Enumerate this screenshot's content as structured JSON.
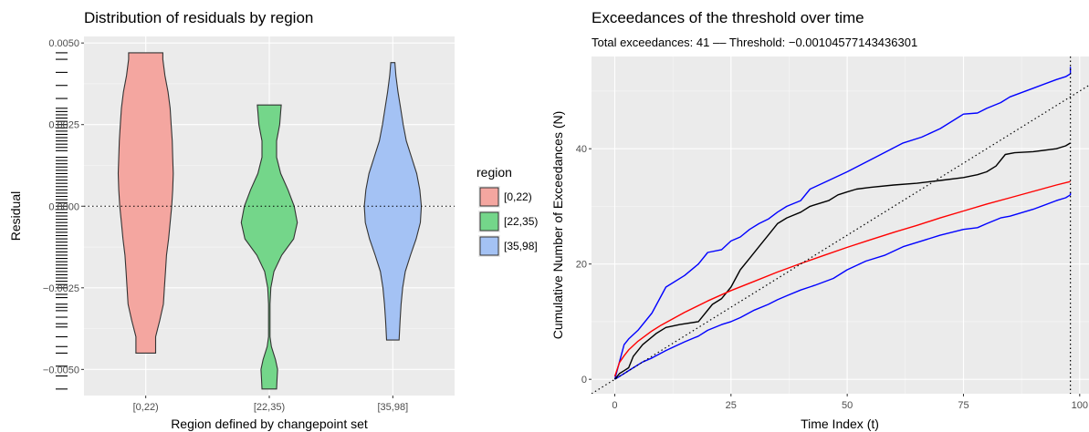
{
  "chart_data": [
    {
      "type": "violin",
      "title": "Distribution of residuals by region",
      "xlabel": "Region defined by changepoint set",
      "ylabel": "Residual",
      "categories": [
        "[0,22)",
        "[22,35)",
        "[35,98]"
      ],
      "ylim": [
        -0.0058,
        0.0052
      ],
      "yticks": [
        -0.005,
        -0.0025,
        0.0,
        0.0025,
        0.005
      ],
      "ytick_labels": [
        "−0.0050",
        "−0.0025",
        "0.0000",
        "0.0025",
        "0.0050"
      ],
      "reference_line": 0.0,
      "rug": true,
      "grid": true,
      "colors": {
        "[0,22)": "#F4A6A0",
        "[22,35)": "#74D68A",
        "[35,98]": "#A4C2F4"
      },
      "violins": [
        {
          "category": "[0,22)",
          "ymin": -0.0045,
          "ymax": 0.0047,
          "profile": [
            [
              -0.0045,
              0.19
            ],
            [
              -0.004,
              0.19
            ],
            [
              -0.0035,
              0.27
            ],
            [
              -0.003,
              0.34
            ],
            [
              -0.0025,
              0.36
            ],
            [
              -0.002,
              0.38
            ],
            [
              -0.0015,
              0.4
            ],
            [
              -0.001,
              0.44
            ],
            [
              -0.0005,
              0.47
            ],
            [
              0.0,
              0.5
            ],
            [
              0.0005,
              0.52
            ],
            [
              0.001,
              0.53
            ],
            [
              0.0015,
              0.52
            ],
            [
              0.002,
              0.51
            ],
            [
              0.0025,
              0.49
            ],
            [
              0.003,
              0.47
            ],
            [
              0.0035,
              0.43
            ],
            [
              0.004,
              0.37
            ],
            [
              0.0045,
              0.33
            ],
            [
              0.0047,
              0.33
            ]
          ]
        },
        {
          "category": "[22,35)",
          "ymin": -0.0056,
          "ymax": 0.0031,
          "profile": [
            [
              -0.0056,
              0.14
            ],
            [
              -0.0053,
              0.15
            ],
            [
              -0.005,
              0.16
            ],
            [
              -0.0047,
              0.12
            ],
            [
              -0.0043,
              0.04
            ],
            [
              -0.004,
              0.014
            ],
            [
              -0.003,
              0.014
            ],
            [
              -0.0025,
              0.03
            ],
            [
              -0.002,
              0.09
            ],
            [
              -0.0015,
              0.24
            ],
            [
              -0.001,
              0.47
            ],
            [
              -0.0005,
              0.54
            ],
            [
              0.0,
              0.48
            ],
            [
              0.0005,
              0.36
            ],
            [
              0.001,
              0.22
            ],
            [
              0.0015,
              0.14
            ],
            [
              0.002,
              0.14
            ],
            [
              0.0025,
              0.2
            ],
            [
              0.0029,
              0.22
            ],
            [
              0.0031,
              0.23
            ]
          ]
        },
        {
          "category": "[35,98]",
          "ymin": -0.0041,
          "ymax": 0.0044,
          "profile": [
            [
              -0.0041,
              0.12
            ],
            [
              -0.0035,
              0.14
            ],
            [
              -0.003,
              0.16
            ],
            [
              -0.0025,
              0.19
            ],
            [
              -0.002,
              0.24
            ],
            [
              -0.0015,
              0.34
            ],
            [
              -0.001,
              0.45
            ],
            [
              -0.0005,
              0.53
            ],
            [
              0.0,
              0.55
            ],
            [
              0.0005,
              0.52
            ],
            [
              0.001,
              0.46
            ],
            [
              0.0015,
              0.36
            ],
            [
              0.002,
              0.26
            ],
            [
              0.0025,
              0.2
            ],
            [
              0.003,
              0.15
            ],
            [
              0.0035,
              0.1
            ],
            [
              0.004,
              0.06
            ],
            [
              0.0044,
              0.04
            ]
          ]
        }
      ],
      "rug_values": [
        0.0047,
        0.0045,
        0.0041,
        0.0037,
        0.0033,
        0.003,
        0.0029,
        0.0028,
        0.0027,
        0.0026,
        0.0025,
        0.0024,
        0.0023,
        0.0022,
        0.0021,
        0.002,
        0.0019,
        0.0018,
        0.0017,
        0.0015,
        0.0014,
        0.0013,
        0.0012,
        0.0011,
        0.001,
        0.0009,
        0.0008,
        0.0007,
        0.0006,
        0.0005,
        0.0004,
        0.0003,
        0.0002,
        0.0001,
        0.0,
        -0.0001,
        -0.0002,
        -0.0003,
        -0.0004,
        -0.0005,
        -0.0006,
        -0.0007,
        -0.0008,
        -0.0009,
        -0.001,
        -0.0011,
        -0.0012,
        -0.0013,
        -0.0014,
        -0.0015,
        -0.0016,
        -0.0017,
        -0.0018,
        -0.0019,
        -0.002,
        -0.0021,
        -0.0022,
        -0.0023,
        -0.0024,
        -0.0025,
        -0.0027,
        -0.0028,
        -0.003,
        -0.0031,
        -0.0032,
        -0.0034,
        -0.0036,
        -0.0037,
        -0.004,
        -0.0043,
        -0.0045,
        -0.0049,
        -0.0052,
        -0.0056
      ],
      "legend": {
        "title": "region",
        "entries": [
          "[0,22)",
          "[22,35)",
          "[35,98]"
        ],
        "position": "right"
      }
    },
    {
      "type": "line",
      "title": "Exceedances of the threshold over time",
      "subtitle": "Total exceedances: 41  –– Threshold: −0.00104577143436301",
      "xlabel": "Time Index (t)",
      "ylabel": "Cumulative Number of Exceedances (N)",
      "xlim": [
        -5,
        102
      ],
      "ylim": [
        -2.5,
        56
      ],
      "xticks": [
        0,
        25,
        50,
        75,
        100
      ],
      "yticks": [
        0,
        20,
        40
      ],
      "grid": true,
      "vline": 98,
      "series": [
        {
          "color": "#0000ff",
          "style": "solid",
          "points": [
            [
              0,
              0
            ],
            [
              1,
              3
            ],
            [
              2,
              6
            ],
            [
              3,
              7
            ],
            [
              5,
              8.5
            ],
            [
              8,
              11.5
            ],
            [
              11,
              16
            ],
            [
              15,
              18
            ],
            [
              18,
              20
            ],
            [
              20,
              22
            ],
            [
              23,
              22.5
            ],
            [
              25,
              24
            ],
            [
              27,
              24.7
            ],
            [
              29,
              26
            ],
            [
              31,
              27
            ],
            [
              33,
              27.8
            ],
            [
              35,
              29
            ],
            [
              37,
              30
            ],
            [
              40,
              31
            ],
            [
              42,
              33
            ],
            [
              46,
              34.5
            ],
            [
              50,
              36
            ],
            [
              56,
              38.5
            ],
            [
              62,
              41
            ],
            [
              66,
              42
            ],
            [
              70,
              43.5
            ],
            [
              75,
              46
            ],
            [
              78,
              46.2
            ],
            [
              80,
              47
            ],
            [
              83,
              48
            ],
            [
              85,
              49
            ],
            [
              90,
              50.5
            ],
            [
              95,
              52
            ],
            [
              97,
              52.5
            ],
            [
              98,
              53
            ],
            [
              98,
              54.2
            ]
          ]
        },
        {
          "color": "#0000ff",
          "style": "solid",
          "points": [
            [
              0,
              0
            ],
            [
              2,
              1
            ],
            [
              4,
              2
            ],
            [
              6,
              3
            ],
            [
              8,
              3.7
            ],
            [
              11,
              5
            ],
            [
              15,
              6.5
            ],
            [
              18,
              7.5
            ],
            [
              20,
              8.5
            ],
            [
              23,
              9.5
            ],
            [
              25,
              10
            ],
            [
              27,
              10.7
            ],
            [
              30,
              12
            ],
            [
              33,
              13
            ],
            [
              35,
              13.8
            ],
            [
              37,
              14.5
            ],
            [
              40,
              15.5
            ],
            [
              43,
              16.3
            ],
            [
              47,
              17.5
            ],
            [
              50,
              19
            ],
            [
              54,
              20.5
            ],
            [
              58,
              21.5
            ],
            [
              62,
              23
            ],
            [
              66,
              24
            ],
            [
              70,
              25
            ],
            [
              75,
              26
            ],
            [
              78,
              26.3
            ],
            [
              80,
              27
            ],
            [
              83,
              28
            ],
            [
              85,
              28.3
            ],
            [
              90,
              29.5
            ],
            [
              95,
              31
            ],
            [
              97,
              31.5
            ],
            [
              98,
              32
            ],
            [
              98,
              32.5
            ]
          ]
        },
        {
          "color": "#000000",
          "style": "solid",
          "points": [
            [
              0,
              0
            ],
            [
              1,
              1
            ],
            [
              2,
              1.5
            ],
            [
              3,
              2
            ],
            [
              4,
              4
            ],
            [
              6,
              6
            ],
            [
              9,
              8
            ],
            [
              11,
              9
            ],
            [
              14,
              9.5
            ],
            [
              18,
              10
            ],
            [
              21,
              13
            ],
            [
              23,
              14
            ],
            [
              25,
              16
            ],
            [
              27,
              19
            ],
            [
              29,
              21
            ],
            [
              31,
              23
            ],
            [
              33,
              25
            ],
            [
              35,
              27
            ],
            [
              37,
              28
            ],
            [
              40,
              29
            ],
            [
              42,
              30
            ],
            [
              46,
              31
            ],
            [
              48,
              32
            ],
            [
              50,
              32.5
            ],
            [
              52,
              33
            ],
            [
              55,
              33.3
            ],
            [
              60,
              33.7
            ],
            [
              65,
              34
            ],
            [
              70,
              34.5
            ],
            [
              75,
              35
            ],
            [
              78,
              35.5
            ],
            [
              80,
              36
            ],
            [
              82,
              37
            ],
            [
              84,
              39
            ],
            [
              86,
              39.3
            ],
            [
              90,
              39.5
            ],
            [
              95,
              40
            ],
            [
              97,
              40.5
            ],
            [
              98,
              41
            ]
          ]
        },
        {
          "color": "#ff0000",
          "style": "solid",
          "points": [
            [
              0,
              0.5
            ],
            [
              1,
              2.9
            ],
            [
              2,
              4.1
            ],
            [
              3,
              5.1
            ],
            [
              5,
              6.6
            ],
            [
              8,
              8.4
            ],
            [
              10,
              9.4
            ],
            [
              15,
              11.6
            ],
            [
              20,
              13.6
            ],
            [
              25,
              15.4
            ],
            [
              30,
              17
            ],
            [
              35,
              18.6
            ],
            [
              40,
              20.1
            ],
            [
              45,
              21.5
            ],
            [
              50,
              22.9
            ],
            [
              55,
              24.2
            ],
            [
              60,
              25.5
            ],
            [
              65,
              26.7
            ],
            [
              70,
              28
            ],
            [
              75,
              29.2
            ],
            [
              80,
              30.4
            ],
            [
              85,
              31.5
            ],
            [
              90,
              32.6
            ],
            [
              95,
              33.7
            ],
            [
              98,
              34.3
            ]
          ]
        },
        {
          "color": "#000000",
          "style": "dotted",
          "points": [
            [
              -5,
              -2.5
            ],
            [
              102,
              51
            ]
          ]
        }
      ]
    }
  ]
}
